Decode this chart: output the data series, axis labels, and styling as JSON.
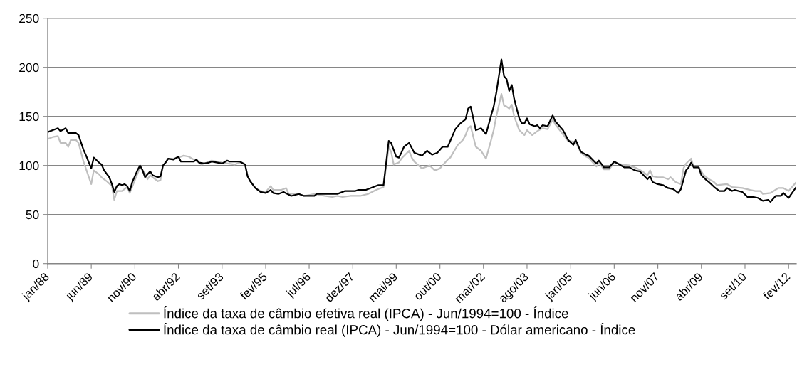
{
  "chart_data": {
    "type": "line",
    "xlim": [
      "1988-01",
      "2012-05"
    ],
    "xticks": [
      {
        "value": "1988-01",
        "label": "jan/88"
      },
      {
        "value": "1989-06",
        "label": "jun/89"
      },
      {
        "value": "1990-11",
        "label": "nov/90"
      },
      {
        "value": "1992-04",
        "label": "abr/92"
      },
      {
        "value": "1993-09",
        "label": "set/93"
      },
      {
        "value": "1995-02",
        "label": "fev/95"
      },
      {
        "value": "1996-07",
        "label": "jul/96"
      },
      {
        "value": "1997-12",
        "label": "dez/97"
      },
      {
        "value": "1999-05",
        "label": "mai/99"
      },
      {
        "value": "2000-10",
        "label": "out/00"
      },
      {
        "value": "2002-03",
        "label": "mar/02"
      },
      {
        "value": "2003-08",
        "label": "ago/03"
      },
      {
        "value": "2005-01",
        "label": "jan/05"
      },
      {
        "value": "2006-06",
        "label": "jun/06"
      },
      {
        "value": "2007-11",
        "label": "nov/07"
      },
      {
        "value": "2009-04",
        "label": "abr/09"
      },
      {
        "value": "2010-09",
        "label": "set/10"
      },
      {
        "value": "2012-02",
        "label": "fev/12"
      }
    ],
    "ylim": [
      0,
      250
    ],
    "yticks": [
      0,
      50,
      100,
      150,
      200,
      250
    ],
    "grid": "y",
    "legend": "bottom",
    "marker": "none",
    "line_style": "solid",
    "series": [
      {
        "name": "Índice da taxa de câmbio efetiva real (IPCA) - Jun/1994=100 - Índice",
        "color": "#bfbfbf",
        "x": [
          "1988-01",
          "1988-03",
          "1988-05",
          "1988-06",
          "1988-08",
          "1988-09",
          "1988-10",
          "1988-12",
          "1989-01",
          "1989-03",
          "1989-06",
          "1989-07",
          "1989-09",
          "1989-10",
          "1989-12",
          "1990-02",
          "1990-03",
          "1990-04",
          "1990-06",
          "1990-08",
          "1990-09",
          "1991-01",
          "1991-03",
          "1991-04",
          "1991-05",
          "1991-07",
          "1991-08",
          "1991-09",
          "1991-10",
          "1991-12",
          "1992-02",
          "1992-04",
          "1992-06",
          "1992-08",
          "1992-10",
          "1993-01",
          "1993-04",
          "1993-05",
          "1993-09",
          "1994-02",
          "1994-04",
          "1994-06",
          "1994-07",
          "1994-08",
          "1994-10",
          "1994-12",
          "1995-02",
          "1995-04",
          "1995-05",
          "1995-08",
          "1995-10",
          "1995-11",
          "1996-03",
          "1996-05",
          "1996-09",
          "1997-01",
          "1997-04",
          "1997-06",
          "1997-08",
          "1997-11",
          "1998-03",
          "1998-06",
          "1998-09",
          "1998-12",
          "1999-02",
          "1999-03",
          "1999-04",
          "1999-06",
          "1999-07",
          "1999-10",
          "1999-11",
          "1999-12",
          "2000-03",
          "2000-06",
          "2000-08",
          "2000-10",
          "2001-01",
          "2001-02",
          "2001-05",
          "2001-07",
          "2001-08",
          "2001-09",
          "2001-10",
          "2001-12",
          "2002-02",
          "2002-04",
          "2002-06",
          "2002-07",
          "2002-08",
          "2002-10",
          "2002-11",
          "2002-12",
          "2003-01",
          "2003-02",
          "2003-03",
          "2003-05",
          "2003-07",
          "2003-08",
          "2003-10",
          "2003-12",
          "2004-02",
          "2004-04",
          "2004-06",
          "2004-07",
          "2004-12",
          "2005-03",
          "2005-05",
          "2005-07",
          "2005-08",
          "2005-11",
          "2005-12",
          "2006-02",
          "2006-04",
          "2006-06",
          "2006-09",
          "2006-12",
          "2007-03",
          "2007-05",
          "2007-07",
          "2007-08",
          "2007-09",
          "2007-11",
          "2008-01",
          "2008-03",
          "2008-04",
          "2008-06",
          "2008-08",
          "2008-09",
          "2008-10",
          "2008-12",
          "2009-01",
          "2009-03",
          "2009-05",
          "2009-07",
          "2009-09",
          "2009-10",
          "2010-02",
          "2010-04",
          "2010-08",
          "2010-11",
          "2011-01",
          "2011-03",
          "2011-04",
          "2011-07",
          "2011-10",
          "2011-12",
          "2012-02",
          "2012-05"
        ],
        "values": [
          127,
          129,
          130,
          123,
          123,
          119,
          126,
          126,
          123,
          104,
          81,
          95,
          91,
          88,
          84,
          79,
          65,
          74,
          74,
          78,
          72,
          98,
          92,
          86,
          90,
          86,
          84,
          85,
          100,
          107,
          107,
          108,
          110,
          109,
          106,
          101,
          104,
          105,
          103,
          101,
          103,
          101,
          89,
          84,
          77,
          74,
          73,
          79,
          75,
          75,
          77,
          71,
          71,
          69,
          71,
          69,
          68,
          69,
          68,
          69,
          69,
          71,
          75,
          78,
          119,
          114,
          101,
          103,
          107,
          115,
          108,
          104,
          97,
          100,
          95,
          97,
          106,
          108,
          121,
          126,
          131,
          138,
          140,
          119,
          115,
          107,
          126,
          136,
          150,
          173,
          161,
          160,
          158,
          162,
          150,
          136,
          131,
          136,
          131,
          135,
          138,
          137,
          147,
          142,
          125,
          124,
          113,
          109,
          108,
          99,
          103,
          96,
          96,
          103,
          101,
          100,
          97,
          94,
          90,
          95,
          89,
          88,
          88,
          86,
          88,
          83,
          81,
          97,
          102,
          107,
          98,
          98,
          90,
          86,
          83,
          80,
          81,
          78,
          77,
          75,
          74,
          74,
          71,
          72,
          77,
          77,
          74,
          83
        ]
      },
      {
        "name": "Índice da taxa de câmbio real (IPCA) - Jun/1994=100 - Dólar americano - Índice",
        "color": "#000000",
        "x": [
          "1988-01",
          "1988-03",
          "1988-05",
          "1988-06",
          "1988-08",
          "1988-09",
          "1988-12",
          "1989-01",
          "1989-03",
          "1989-04",
          "1989-06",
          "1989-07",
          "1989-09",
          "1989-10",
          "1989-11",
          "1990-01",
          "1990-02",
          "1990-03",
          "1990-04",
          "1990-05",
          "1990-06",
          "1990-07",
          "1990-08",
          "1990-09",
          "1990-10",
          "1990-12",
          "1991-01",
          "1991-02",
          "1991-03",
          "1991-05",
          "1991-06",
          "1991-08",
          "1991-09",
          "1991-10",
          "1991-11",
          "1991-12",
          "1992-02",
          "1992-04",
          "1992-05",
          "1992-10",
          "1992-11",
          "1992-12",
          "1993-02",
          "1993-04",
          "1993-05",
          "1993-09",
          "1993-11",
          "1993-12",
          "1994-02",
          "1994-04",
          "1994-06",
          "1994-07",
          "1994-08",
          "1994-10",
          "1994-12",
          "1995-02",
          "1995-04",
          "1995-05",
          "1995-07",
          "1995-09",
          "1995-12",
          "1996-03",
          "1996-05",
          "1996-09",
          "1996-10",
          "1997-06",
          "1997-07",
          "1997-09",
          "1998-01",
          "1998-02",
          "1998-05",
          "1998-07",
          "1998-10",
          "1998-12",
          "1999-02",
          "1999-03",
          "1999-05",
          "1999-06",
          "1999-07",
          "1999-08",
          "1999-10",
          "1999-12",
          "2000-03",
          "2000-05",
          "2000-07",
          "2000-09",
          "2000-11",
          "2001-01",
          "2001-04",
          "2001-06",
          "2001-08",
          "2001-09",
          "2001-10",
          "2001-12",
          "2002-02",
          "2002-04",
          "2002-06",
          "2002-07",
          "2002-08",
          "2002-10",
          "2002-11",
          "2002-12",
          "2003-01",
          "2003-02",
          "2003-03",
          "2003-05",
          "2003-06",
          "2003-07",
          "2003-08",
          "2003-09",
          "2003-11",
          "2003-12",
          "2004-01",
          "2004-02",
          "2004-04",
          "2004-06",
          "2004-07",
          "2004-10",
          "2004-12",
          "2005-02",
          "2005-03",
          "2005-05",
          "2005-07",
          "2005-08",
          "2005-11",
          "2005-12",
          "2006-02",
          "2006-04",
          "2006-06",
          "2006-08",
          "2006-10",
          "2006-12",
          "2007-02",
          "2007-04",
          "2007-07",
          "2007-08",
          "2007-09",
          "2007-11",
          "2008-01",
          "2008-03",
          "2008-05",
          "2008-07",
          "2008-08",
          "2008-10",
          "2008-11",
          "2008-12",
          "2009-01",
          "2009-03",
          "2009-04",
          "2009-06",
          "2009-07",
          "2009-09",
          "2009-11",
          "2010-01",
          "2010-02",
          "2010-04",
          "2010-05",
          "2010-08",
          "2010-10",
          "2010-12",
          "2011-02",
          "2011-04",
          "2011-06",
          "2011-07",
          "2011-09",
          "2011-11",
          "2011-12",
          "2012-02",
          "2012-05"
        ],
        "values": [
          134,
          136,
          138,
          135,
          138,
          133,
          133,
          131,
          116,
          110,
          97,
          108,
          103,
          101,
          95,
          88,
          81,
          73,
          79,
          81,
          80,
          81,
          79,
          74,
          83,
          95,
          100,
          95,
          88,
          94,
          90,
          88,
          89,
          100,
          103,
          107,
          106,
          109,
          104,
          104,
          106,
          103,
          102,
          103,
          104,
          102,
          105,
          104,
          104,
          104,
          101,
          89,
          84,
          77,
          73,
          72,
          75,
          72,
          71,
          73,
          69,
          71,
          69,
          69,
          71,
          71,
          72,
          74,
          74,
          75,
          75,
          77,
          80,
          80,
          125,
          123,
          109,
          108,
          113,
          119,
          123,
          113,
          110,
          115,
          111,
          113,
          119,
          119,
          137,
          143,
          147,
          158,
          160,
          136,
          138,
          132,
          151,
          160,
          174,
          208,
          191,
          188,
          176,
          182,
          168,
          148,
          143,
          143,
          148,
          142,
          140,
          141,
          138,
          141,
          140,
          151,
          145,
          136,
          126,
          121,
          126,
          114,
          111,
          110,
          102,
          105,
          98,
          98,
          104,
          101,
          98,
          98,
          95,
          94,
          86,
          89,
          83,
          81,
          80,
          77,
          76,
          72,
          76,
          95,
          98,
          103,
          98,
          98,
          90,
          85,
          83,
          78,
          74,
          74,
          77,
          74,
          75,
          73,
          68,
          68,
          67,
          64,
          65,
          63,
          69,
          69,
          72,
          67,
          78
        ]
      }
    ]
  }
}
